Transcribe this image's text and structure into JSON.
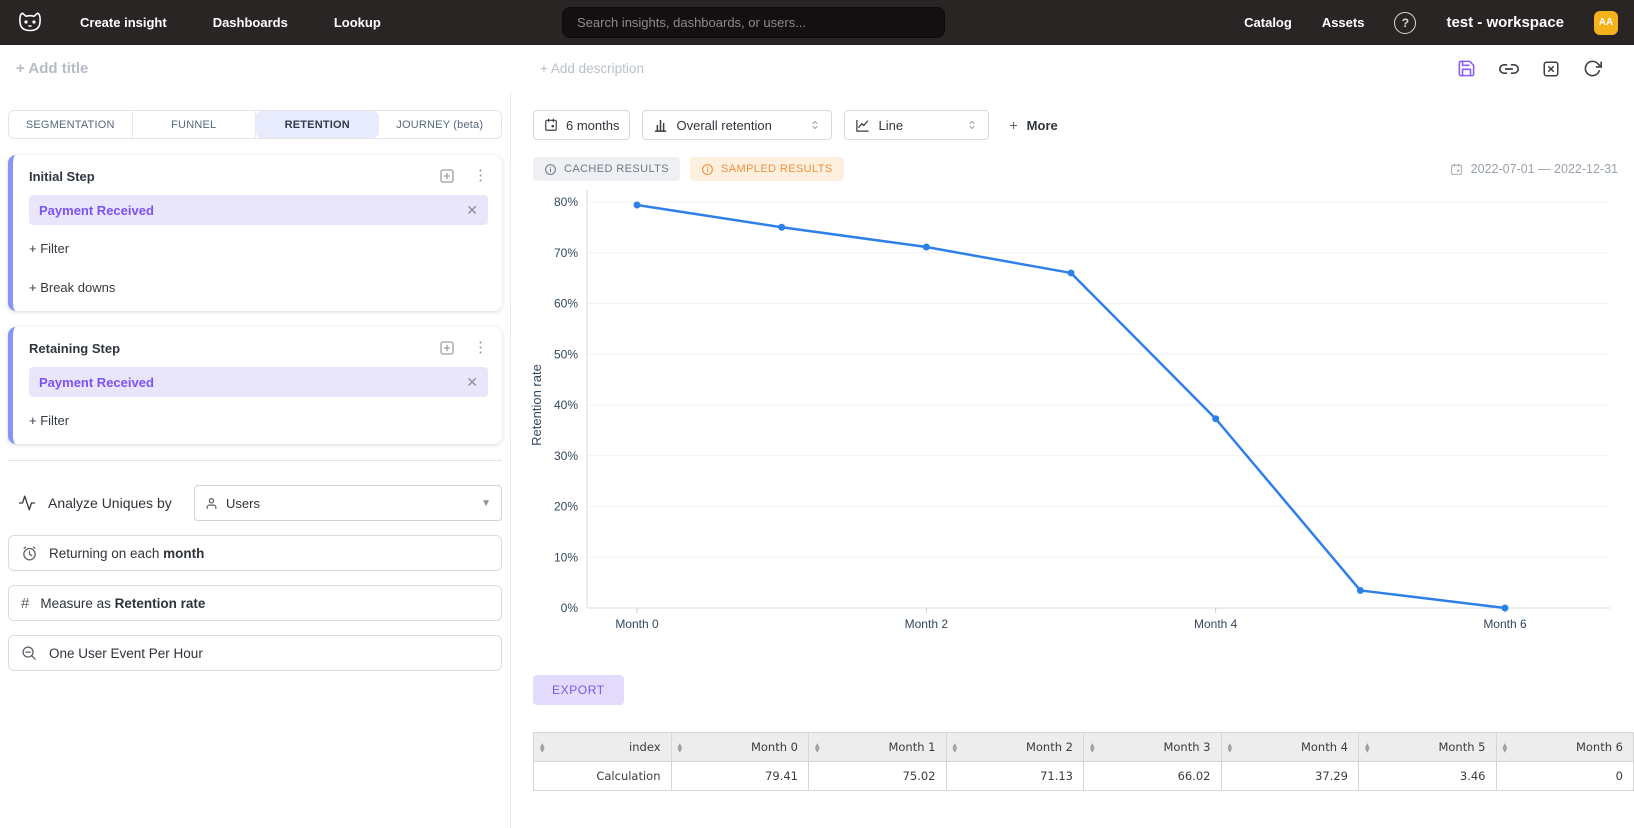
{
  "navbar": {
    "menu": [
      {
        "label": "Create insight"
      },
      {
        "label": "Dashboards"
      },
      {
        "label": "Lookup"
      }
    ],
    "search_placeholder": "Search insights, dashboards, or users...",
    "right_menu": [
      {
        "label": "Catalog"
      },
      {
        "label": "Assets"
      }
    ],
    "help": "?",
    "workspace": "test - workspace",
    "avatar": "AA",
    "avatar_color": "#f6b21b"
  },
  "titlebar": {
    "add_title": "+ Add title",
    "add_description": "+ Add description"
  },
  "builder": {
    "tabs": [
      {
        "label": "SEGMENTATION"
      },
      {
        "label": "FUNNEL"
      },
      {
        "label": "RETENTION"
      },
      {
        "label": "JOURNEY (beta)"
      }
    ],
    "active_tab": "RETENTION",
    "initial_step": {
      "title": "Initial Step",
      "event": "Payment Received",
      "filter_link": "+ Filter",
      "breakdown_link": "+ Break downs"
    },
    "retaining_step": {
      "title": "Retaining Step",
      "event": "Payment Received",
      "filter_link": "+ Filter"
    },
    "analyze": {
      "label": "Analyze Uniques by",
      "value": "Users"
    },
    "options": [
      {
        "prefix": "Returning on each ",
        "bold": "month"
      },
      {
        "prefix": "Measure as ",
        "bold": "Retention rate"
      },
      {
        "prefix": "One User Event Per Hour",
        "bold": ""
      }
    ]
  },
  "controls": {
    "date_window": "6 months",
    "retention_type": "Overall retention",
    "chart_type": "Line",
    "more_label": "More"
  },
  "status": {
    "cached": "CACHED RESULTS",
    "sampled": "SAMPLED RESULTS",
    "date_range": "2022-07-01 — 2022-12-31"
  },
  "chart_data": {
    "type": "line",
    "categories": [
      "Month 0",
      "Month 1",
      "Month 2",
      "Month 3",
      "Month 4",
      "Month 5",
      "Month 6"
    ],
    "values": [
      79.41,
      75.02,
      71.13,
      66.02,
      37.29,
      3.46,
      0
    ],
    "series_name": "Overall retention",
    "xlabel": "",
    "ylabel": "Retention rate",
    "ylim": [
      0,
      80
    ],
    "y_tick_step": 10,
    "y_tick_suffix": "%",
    "x_labeled_indices": [
      0,
      2,
      4,
      6
    ],
    "grid": true,
    "legend": false,
    "line_color": "#2e80e9",
    "axis_text_color": "#33475b"
  },
  "export_label": "EXPORT",
  "table": {
    "columns": [
      "index",
      "Month 0",
      "Month 1",
      "Month 2",
      "Month 3",
      "Month 4",
      "Month 5",
      "Month 6"
    ],
    "rows": [
      [
        "Calculation",
        "79.41",
        "75.02",
        "71.13",
        "66.02",
        "37.29",
        "3.46",
        "0"
      ]
    ]
  }
}
